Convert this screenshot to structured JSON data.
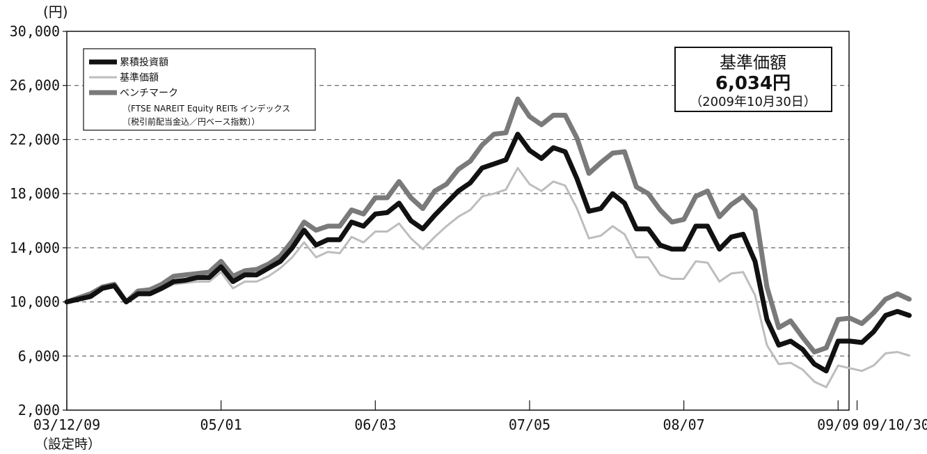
{
  "chart_data": {
    "type": "line",
    "y_unit": "(円)",
    "ylim": [
      2000,
      30000
    ],
    "yticks": [
      2000,
      6000,
      10000,
      14000,
      18000,
      22000,
      26000,
      30000
    ],
    "ytick_labels": [
      "2,000",
      "6,000",
      "10,000",
      "14,000",
      "18,000",
      "22,000",
      "26,000",
      "30,000"
    ],
    "grid": "horizontal-dashed",
    "x_tick_labels": [
      "03/12/09",
      "05/01",
      "06/03",
      "07/05",
      "08/07",
      "09/09",
      "09/10/30"
    ],
    "x_tick_positions": [
      0,
      13,
      26,
      39,
      52,
      65,
      66.6
    ],
    "x_start_note": "（設定時）",
    "legend_position": "top-left",
    "legend": [
      {
        "name": "累積投資額"
      },
      {
        "name": "基準価額"
      },
      {
        "name": "ベンチマーク"
      }
    ],
    "legend_note_1": "（FTSE NAREIT Equity REITs インデックス",
    "legend_note_2": "〔税引前配当金込／円ベース指数〕）",
    "nav_box": {
      "title": "基準価額",
      "value": "6,034円",
      "date": "（2009年10月30日）"
    },
    "series": [
      {
        "name": "累積投資額",
        "color": "#111111",
        "values": [
          10000,
          10200,
          10400,
          11000,
          11200,
          10000,
          10600,
          10600,
          11000,
          11500,
          11600,
          11800,
          11800,
          12600,
          11500,
          12000,
          12000,
          12500,
          13000,
          14000,
          15300,
          14200,
          14600,
          14600,
          15900,
          15600,
          16500,
          16600,
          17300,
          16000,
          15400,
          16400,
          17300,
          18200,
          18800,
          19900,
          20200,
          20500,
          22400,
          21200,
          20600,
          21400,
          21100,
          19100,
          16700,
          16900,
          18000,
          17300,
          15400,
          15400,
          14200,
          13900,
          13900,
          15600,
          15600,
          13900,
          14800,
          15000,
          13000,
          8700,
          6800,
          7100,
          6500,
          5400,
          4900,
          7100,
          7100,
          7000,
          7800,
          9000,
          9300,
          9000
        ]
      },
      {
        "name": "基準価額",
        "color": "#bdbdbd",
        "values": [
          10000,
          10200,
          10400,
          11000,
          11200,
          10000,
          10500,
          10500,
          10900,
          11300,
          11400,
          11500,
          11500,
          12200,
          11000,
          11500,
          11500,
          11900,
          12500,
          13300,
          14400,
          13300,
          13700,
          13600,
          14800,
          14400,
          15200,
          15200,
          15800,
          14700,
          13900,
          14800,
          15600,
          16300,
          16800,
          17800,
          18000,
          18300,
          19900,
          18700,
          18200,
          18900,
          18600,
          16900,
          14700,
          14900,
          15600,
          15000,
          13300,
          13300,
          12000,
          11700,
          11700,
          13000,
          12900,
          11500,
          12100,
          12200,
          10500,
          6800,
          5400,
          5500,
          5000,
          4100,
          3700,
          5300,
          5100,
          4900,
          5300,
          6200,
          6300,
          6034
        ]
      },
      {
        "name": "ベンチマーク",
        "color": "#7a7a7a",
        "values": [
          10000,
          10300,
          10600,
          11100,
          11300,
          10000,
          10800,
          10900,
          11300,
          11900,
          12000,
          12100,
          12200,
          13000,
          11900,
          12300,
          12400,
          12800,
          13400,
          14500,
          15900,
          15300,
          15600,
          15600,
          16800,
          16500,
          17700,
          17700,
          18900,
          17700,
          16900,
          18200,
          18700,
          19800,
          20400,
          21600,
          22400,
          22500,
          25000,
          23700,
          23100,
          23800,
          23800,
          22100,
          19500,
          20300,
          21000,
          21100,
          18500,
          18000,
          16800,
          15900,
          16100,
          17800,
          18200,
          16300,
          17200,
          17800,
          16800,
          11100,
          8100,
          8600,
          7400,
          6300,
          6600,
          8700,
          8800,
          8400,
          9200,
          10200,
          10600,
          10200
        ]
      }
    ]
  }
}
